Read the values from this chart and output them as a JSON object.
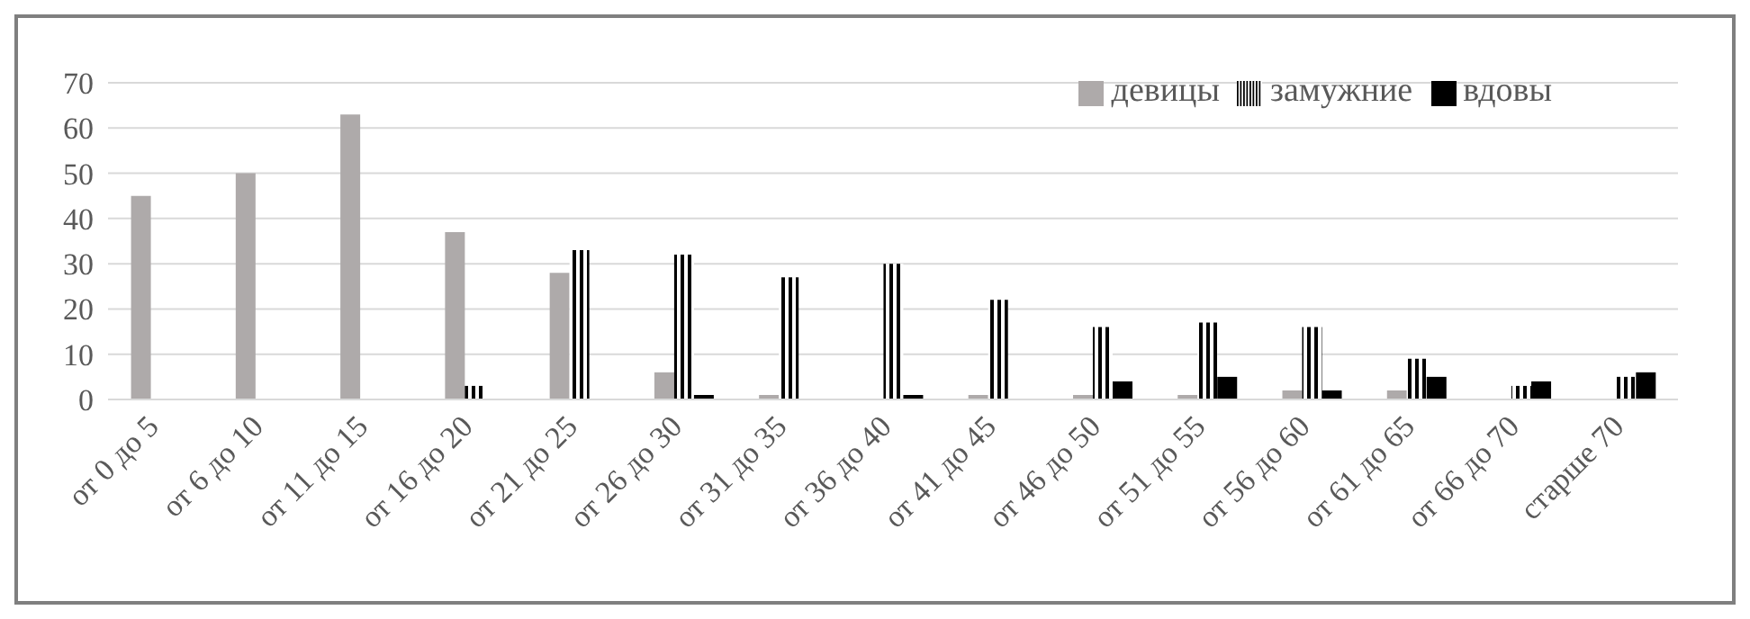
{
  "chart_data": {
    "type": "bar",
    "categories": [
      "от 0 до 5",
      "от 6 до 10",
      "от 11 до 15",
      "от 16 до 20",
      "от 21 до 25",
      "от 26 до 30",
      "от 31 до 35",
      "от 36 до 40",
      "от 41 до 45",
      "от 46 до 50",
      "от 51 до 55",
      "от 56 до 60",
      "от 61 до 65",
      "от 66 до 70",
      "старше 70"
    ],
    "series": [
      {
        "name": "девицы",
        "color": "#aeaaaa",
        "values": [
          45,
          50,
          63,
          37,
          28,
          6,
          1,
          0,
          1,
          1,
          1,
          2,
          2,
          0,
          0
        ]
      },
      {
        "name": "замужние",
        "color": "#000000",
        "values": [
          0,
          0,
          0,
          3,
          33,
          32,
          27,
          30,
          22,
          16,
          17,
          16,
          9,
          3,
          5
        ]
      },
      {
        "name": "вдовы",
        "color": "#000000",
        "values": [
          0,
          0,
          0,
          0,
          0,
          1,
          0,
          1,
          0,
          4,
          5,
          2,
          5,
          4,
          6
        ]
      }
    ],
    "ylim": [
      0,
      70
    ],
    "yticks": [
      0,
      10,
      20,
      30,
      40,
      50,
      60,
      70
    ],
    "grid": "y",
    "legend": "top right"
  }
}
